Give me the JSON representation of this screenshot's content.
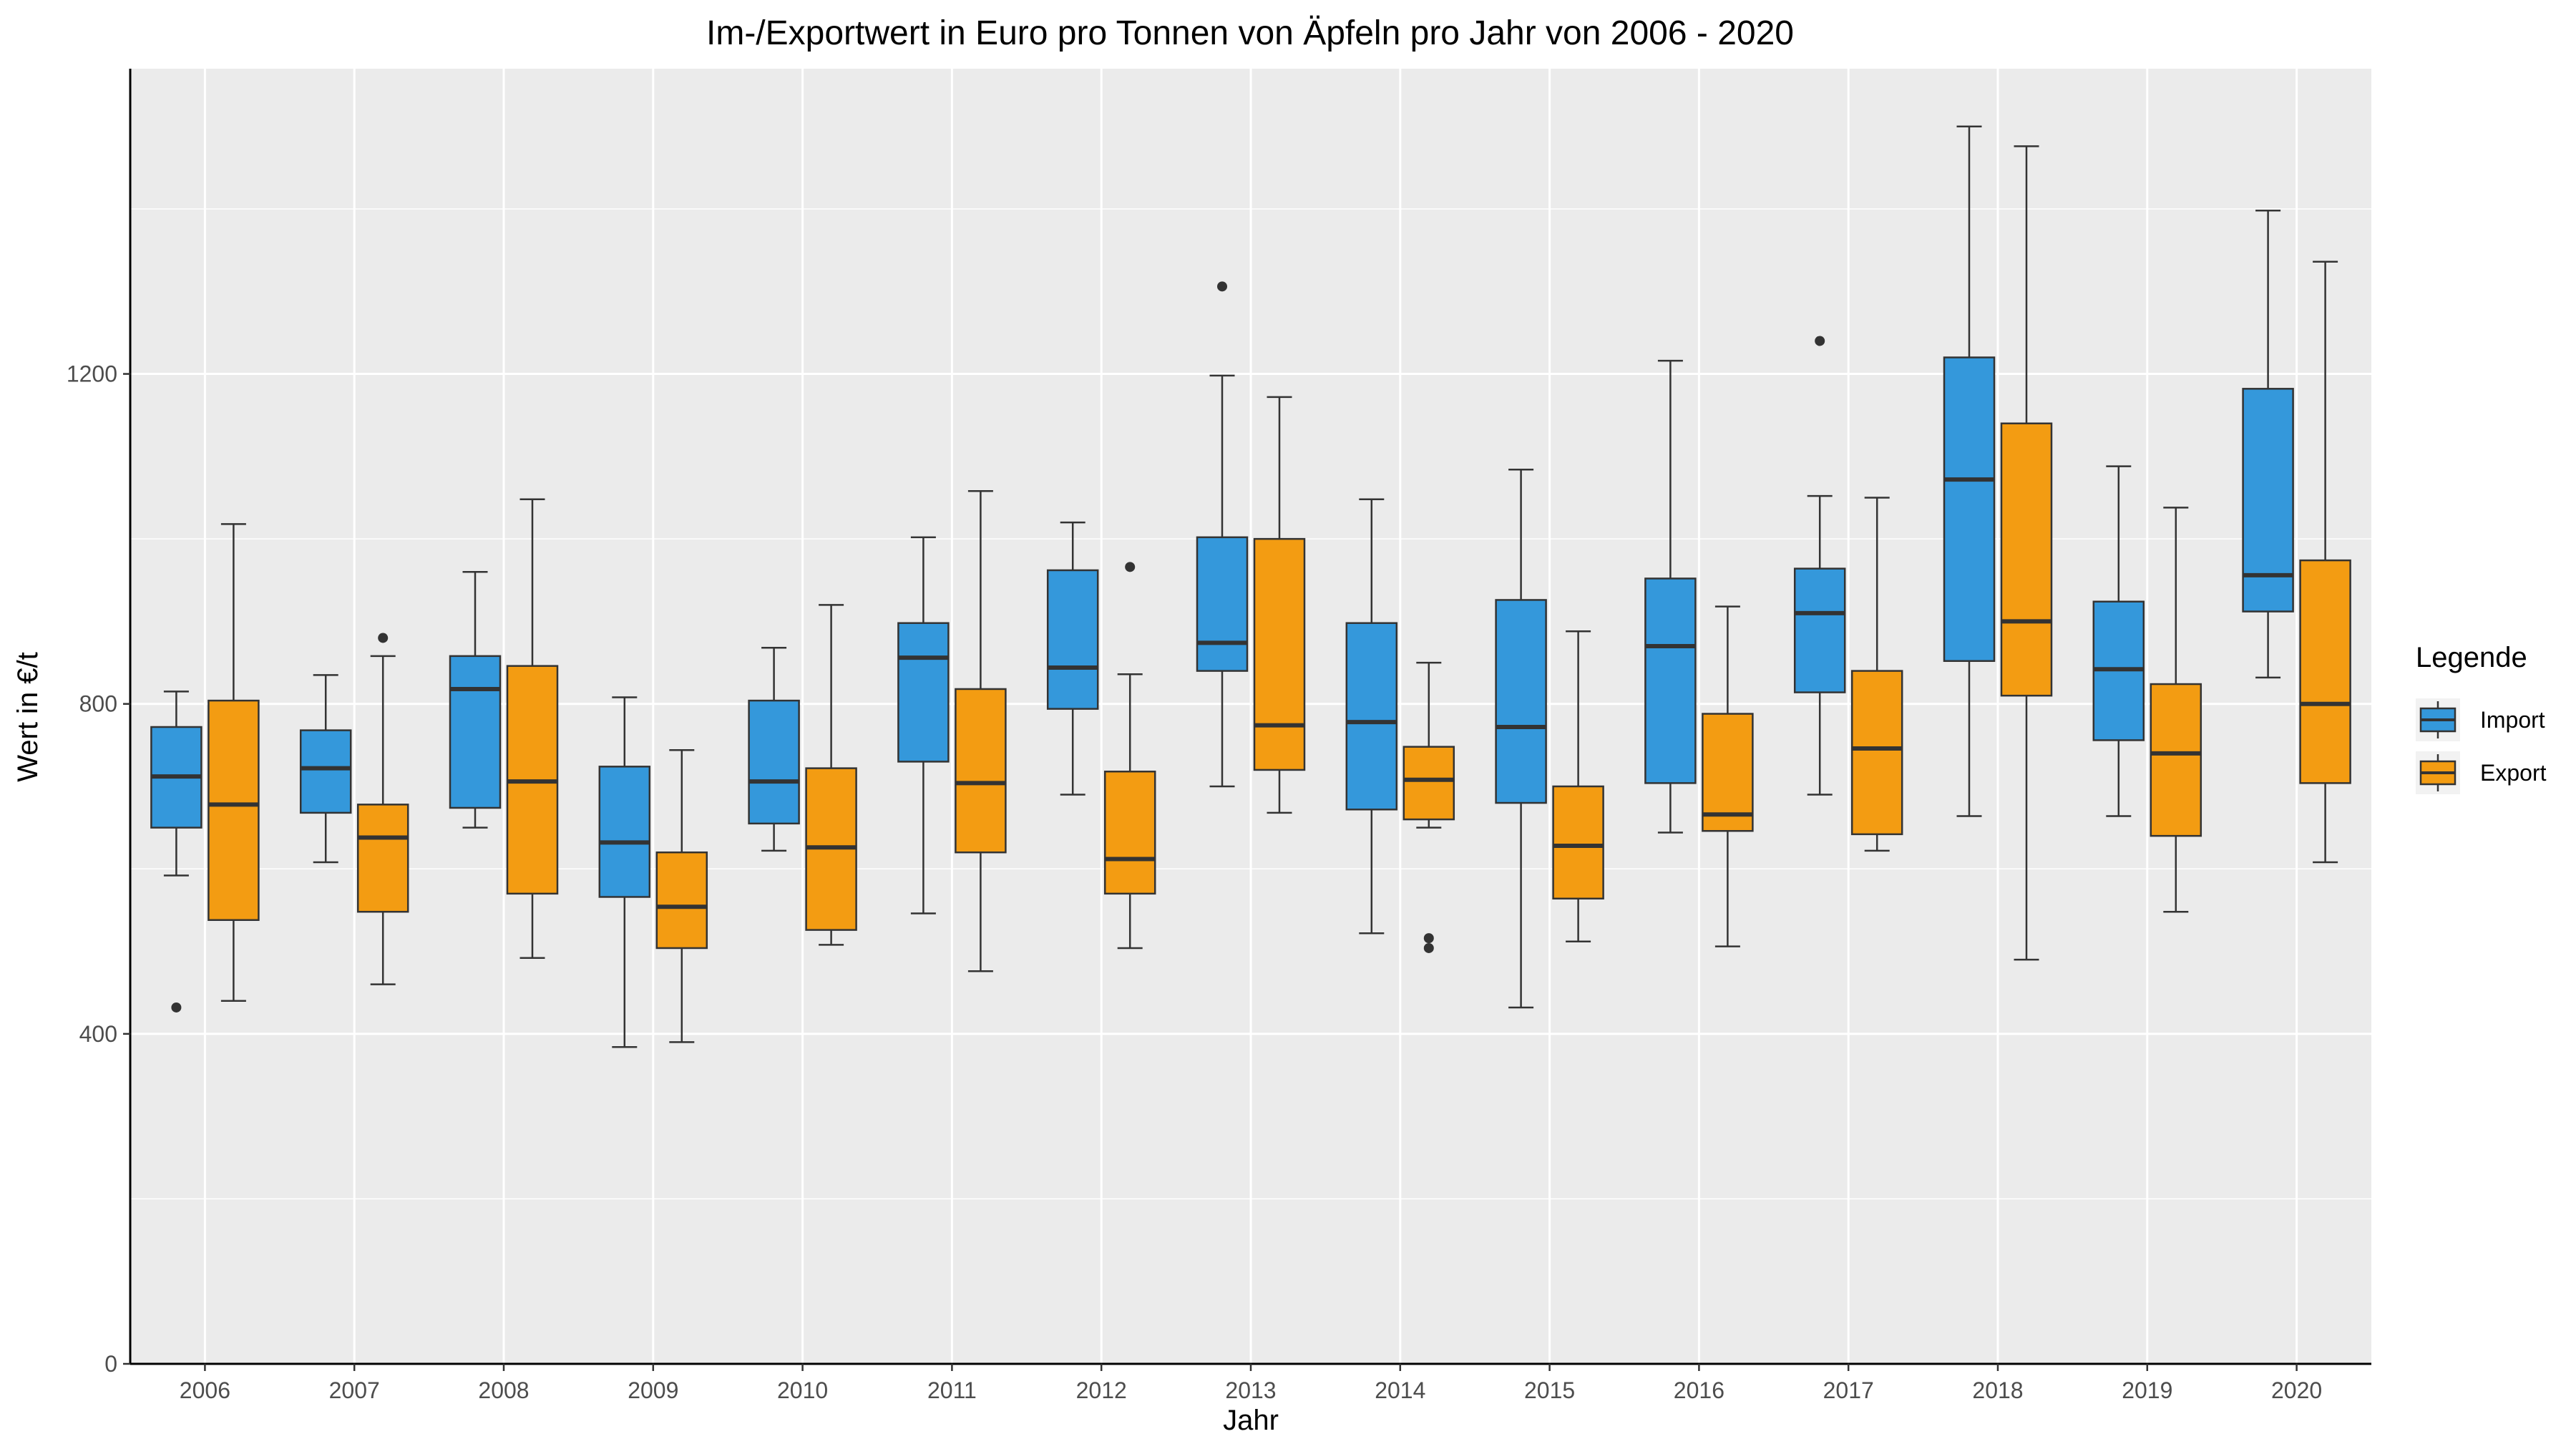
{
  "chart_data": {
    "type": "boxplot",
    "title": "Im-/Exportwert in Euro pro Tonnen von Äpfeln pro Jahr von 2006 - 2020",
    "xlabel": "Jahr",
    "ylabel": "Wert in €/t",
    "ylim": [
      0,
      1570
    ],
    "yticks": [
      0,
      400,
      800,
      1200
    ],
    "grid": true,
    "legend": {
      "title": "Legende",
      "position": "right",
      "entries": [
        {
          "name": "Import",
          "color": "#3498db"
        },
        {
          "name": "Export",
          "color": "#f39c12"
        }
      ]
    },
    "categories": [
      "2006",
      "2007",
      "2008",
      "2009",
      "2010",
      "2011",
      "2012",
      "2013",
      "2014",
      "2015",
      "2016",
      "2017",
      "2018",
      "2019",
      "2020"
    ],
    "series": [
      {
        "name": "Import",
        "color": "#3498db",
        "boxes": [
          {
            "min": 592,
            "q1": 650,
            "median": 712,
            "q3": 772,
            "max": 815,
            "outliers": [
              432
            ]
          },
          {
            "min": 608,
            "q1": 668,
            "median": 722,
            "q3": 768,
            "max": 835,
            "outliers": []
          },
          {
            "min": 650,
            "q1": 674,
            "median": 818,
            "q3": 858,
            "max": 960,
            "outliers": []
          },
          {
            "min": 384,
            "q1": 566,
            "median": 632,
            "q3": 724,
            "max": 808,
            "outliers": []
          },
          {
            "min": 622,
            "q1": 655,
            "median": 706,
            "q3": 804,
            "max": 868,
            "outliers": []
          },
          {
            "min": 546,
            "q1": 730,
            "median": 856,
            "q3": 898,
            "max": 1002,
            "outliers": []
          },
          {
            "min": 690,
            "q1": 794,
            "median": 844,
            "q3": 962,
            "max": 1020,
            "outliers": []
          },
          {
            "min": 700,
            "q1": 840,
            "median": 874,
            "q3": 1002,
            "max": 1198,
            "outliers": [
              1306
            ]
          },
          {
            "min": 522,
            "q1": 672,
            "median": 778,
            "q3": 898,
            "max": 1048,
            "outliers": []
          },
          {
            "min": 432,
            "q1": 680,
            "median": 772,
            "q3": 926,
            "max": 1084,
            "outliers": []
          },
          {
            "min": 644,
            "q1": 704,
            "median": 870,
            "q3": 952,
            "max": 1216,
            "outliers": []
          },
          {
            "min": 690,
            "q1": 814,
            "median": 910,
            "q3": 964,
            "max": 1052,
            "outliers": [
              1240
            ]
          },
          {
            "min": 664,
            "q1": 852,
            "median": 1072,
            "q3": 1220,
            "max": 1500,
            "outliers": []
          },
          {
            "min": 664,
            "q1": 756,
            "median": 842,
            "q3": 924,
            "max": 1088,
            "outliers": []
          },
          {
            "min": 832,
            "q1": 912,
            "median": 956,
            "q3": 1182,
            "max": 1398,
            "outliers": []
          }
        ]
      },
      {
        "name": "Export",
        "color": "#f39c12",
        "boxes": [
          {
            "min": 440,
            "q1": 538,
            "median": 678,
            "q3": 804,
            "max": 1018,
            "outliers": []
          },
          {
            "min": 460,
            "q1": 548,
            "median": 638,
            "q3": 678,
            "max": 858,
            "outliers": [
              880
            ]
          },
          {
            "min": 492,
            "q1": 570,
            "median": 706,
            "q3": 846,
            "max": 1048,
            "outliers": []
          },
          {
            "min": 390,
            "q1": 504,
            "median": 554,
            "q3": 620,
            "max": 744,
            "outliers": []
          },
          {
            "min": 508,
            "q1": 526,
            "median": 626,
            "q3": 722,
            "max": 920,
            "outliers": []
          },
          {
            "min": 476,
            "q1": 620,
            "median": 704,
            "q3": 818,
            "max": 1058,
            "outliers": []
          },
          {
            "min": 504,
            "q1": 570,
            "median": 612,
            "q3": 718,
            "max": 836,
            "outliers": [
              966
            ]
          },
          {
            "min": 668,
            "q1": 720,
            "median": 774,
            "q3": 1000,
            "max": 1172,
            "outliers": []
          },
          {
            "min": 650,
            "q1": 660,
            "median": 708,
            "q3": 748,
            "max": 850,
            "outliers": [
              516,
              504
            ]
          },
          {
            "min": 512,
            "q1": 564,
            "median": 628,
            "q3": 700,
            "max": 888,
            "outliers": []
          },
          {
            "min": 506,
            "q1": 646,
            "median": 666,
            "q3": 788,
            "max": 918,
            "outliers": []
          },
          {
            "min": 622,
            "q1": 642,
            "median": 746,
            "q3": 840,
            "max": 1050,
            "outliers": []
          },
          {
            "min": 490,
            "q1": 810,
            "median": 900,
            "q3": 1140,
            "max": 1476,
            "outliers": []
          },
          {
            "min": 548,
            "q1": 640,
            "median": 740,
            "q3": 824,
            "max": 1038,
            "outliers": []
          },
          {
            "min": 608,
            "q1": 704,
            "median": 800,
            "q3": 974,
            "max": 1336,
            "outliers": []
          }
        ]
      }
    ]
  }
}
